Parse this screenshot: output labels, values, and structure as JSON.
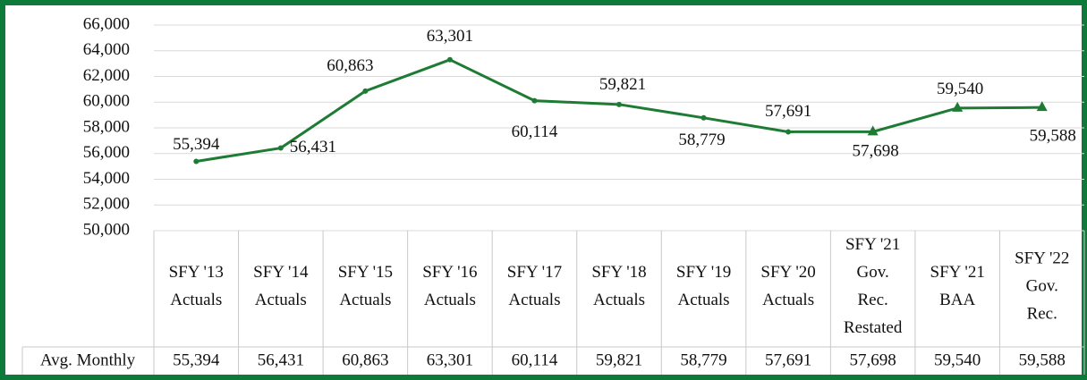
{
  "chart_data": {
    "type": "line",
    "categories": [
      [
        "SFY '13",
        "Actuals"
      ],
      [
        "SFY '14",
        "Actuals"
      ],
      [
        "SFY '15",
        "Actuals"
      ],
      [
        "SFY '16",
        "Actuals"
      ],
      [
        "SFY '17",
        "Actuals"
      ],
      [
        "SFY '18",
        "Actuals"
      ],
      [
        "SFY '19",
        "Actuals"
      ],
      [
        "SFY '20",
        "Actuals"
      ],
      [
        "SFY '21",
        "Gov.",
        "Rec.",
        "Restated"
      ],
      [
        "SFY '21",
        "BAA"
      ],
      [
        "SFY '22",
        "Gov.",
        "Rec."
      ]
    ],
    "series": [
      {
        "name": "Avg. Monthly",
        "color": "#1e7b34",
        "values": [
          55394,
          56431,
          60863,
          63301,
          60114,
          59821,
          58779,
          57691,
          57698,
          59540,
          59588
        ],
        "value_labels": [
          "55,394",
          "56,431",
          "60,863",
          "63,301",
          "60,114",
          "59,821",
          "58,779",
          "57,691",
          "57,698",
          "59,540",
          "59,588"
        ],
        "markers": [
          "circle",
          "circle",
          "circle",
          "circle",
          "circle",
          "circle",
          "circle",
          "circle",
          "triangle",
          "triangle",
          "triangle"
        ]
      }
    ],
    "ylim": [
      50000,
      66000
    ],
    "yticks": [
      {
        "value": 50000,
        "label": "50,000"
      },
      {
        "value": 52000,
        "label": "52,000"
      },
      {
        "value": 54000,
        "label": "54,000"
      },
      {
        "value": 56000,
        "label": "56,000"
      },
      {
        "value": 58000,
        "label": "58,000"
      },
      {
        "value": 60000,
        "label": "60,000"
      },
      {
        "value": 62000,
        "label": "62,000"
      },
      {
        "value": 64000,
        "label": "64,000"
      },
      {
        "value": 66000,
        "label": "66,000"
      }
    ],
    "grid": true
  }
}
